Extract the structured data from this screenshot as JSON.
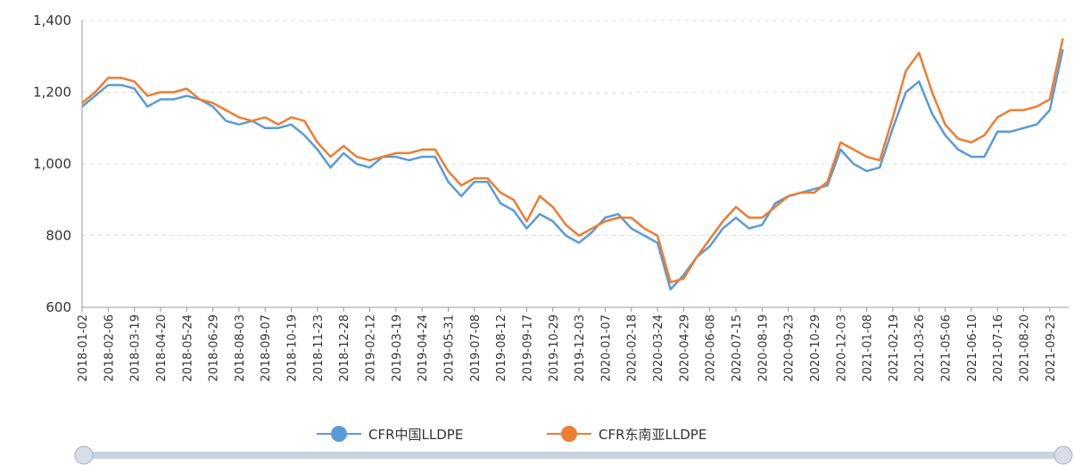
{
  "chart_data": {
    "type": "line",
    "categories": [
      "2018-01-02",
      null,
      "2018-02-06",
      null,
      "2018-03-19",
      null,
      "2018-04-20",
      null,
      "2018-05-24",
      null,
      "2018-06-29",
      null,
      "2018-08-03",
      null,
      "2018-09-07",
      null,
      "2018-10-19",
      null,
      "2018-11-23",
      null,
      "2018-12-28",
      null,
      "2019-02-12",
      null,
      "2019-03-19",
      null,
      "2019-04-24",
      null,
      "2019-05-31",
      null,
      "2019-07-08",
      null,
      "2019-08-12",
      null,
      "2019-09-17",
      null,
      "2019-10-29",
      null,
      "2019-12-03",
      null,
      "2020-01-07",
      null,
      "2020-02-18",
      null,
      "2020-03-24",
      null,
      "2020-04-29",
      null,
      "2020-06-08",
      null,
      "2020-07-15",
      null,
      "2020-08-19",
      null,
      "2020-09-23",
      null,
      "2020-10-29",
      null,
      "2020-12-03",
      null,
      "2021-01-08",
      null,
      "2021-02-19",
      null,
      "2021-03-26",
      null,
      "2021-05-06",
      null,
      "2021-06-10",
      null,
      "2021-07-16",
      null,
      "2021-08-20",
      null,
      "2021-09-23",
      null
    ],
    "series": [
      {
        "name": "CFR中国LLDPE",
        "color": "#5b9bd5",
        "values": [
          1160,
          1190,
          1220,
          1220,
          1210,
          1160,
          1180,
          1180,
          1190,
          1180,
          1160,
          1120,
          1110,
          1120,
          1100,
          1100,
          1110,
          1080,
          1040,
          990,
          1030,
          1000,
          990,
          1020,
          1020,
          1010,
          1020,
          1020,
          950,
          910,
          950,
          950,
          890,
          870,
          820,
          860,
          840,
          800,
          780,
          810,
          850,
          860,
          820,
          800,
          780,
          650,
          690,
          740,
          770,
          820,
          850,
          820,
          830,
          890,
          910,
          920,
          930,
          940,
          1040,
          1000,
          980,
          990,
          1100,
          1200,
          1230,
          1140,
          1080,
          1040,
          1020,
          1020,
          1090,
          1090,
          1100,
          1110,
          1150,
          1320
        ]
      },
      {
        "name": "CFR东南亚LLDPE",
        "color": "#ed7d31",
        "values": [
          1170,
          1200,
          1240,
          1240,
          1230,
          1190,
          1200,
          1200,
          1210,
          1180,
          1170,
          1150,
          1130,
          1120,
          1130,
          1110,
          1130,
          1120,
          1060,
          1020,
          1050,
          1020,
          1010,
          1020,
          1030,
          1030,
          1040,
          1040,
          980,
          940,
          960,
          960,
          920,
          900,
          840,
          910,
          880,
          830,
          800,
          820,
          840,
          850,
          850,
          820,
          800,
          670,
          680,
          740,
          790,
          840,
          880,
          850,
          850,
          880,
          910,
          920,
          920,
          950,
          1060,
          1040,
          1020,
          1010,
          1130,
          1260,
          1310,
          1200,
          1110,
          1070,
          1060,
          1080,
          1130,
          1150,
          1150,
          1160,
          1180,
          1350
        ]
      }
    ],
    "ylim": [
      600,
      1400
    ],
    "yticks": [
      600,
      800,
      {
        "value": 1000,
        "label": "1,000"
      },
      {
        "value": 1200,
        "label": "1,200"
      },
      {
        "value": 1400,
        "label": "1,400"
      }
    ],
    "grid": true
  }
}
